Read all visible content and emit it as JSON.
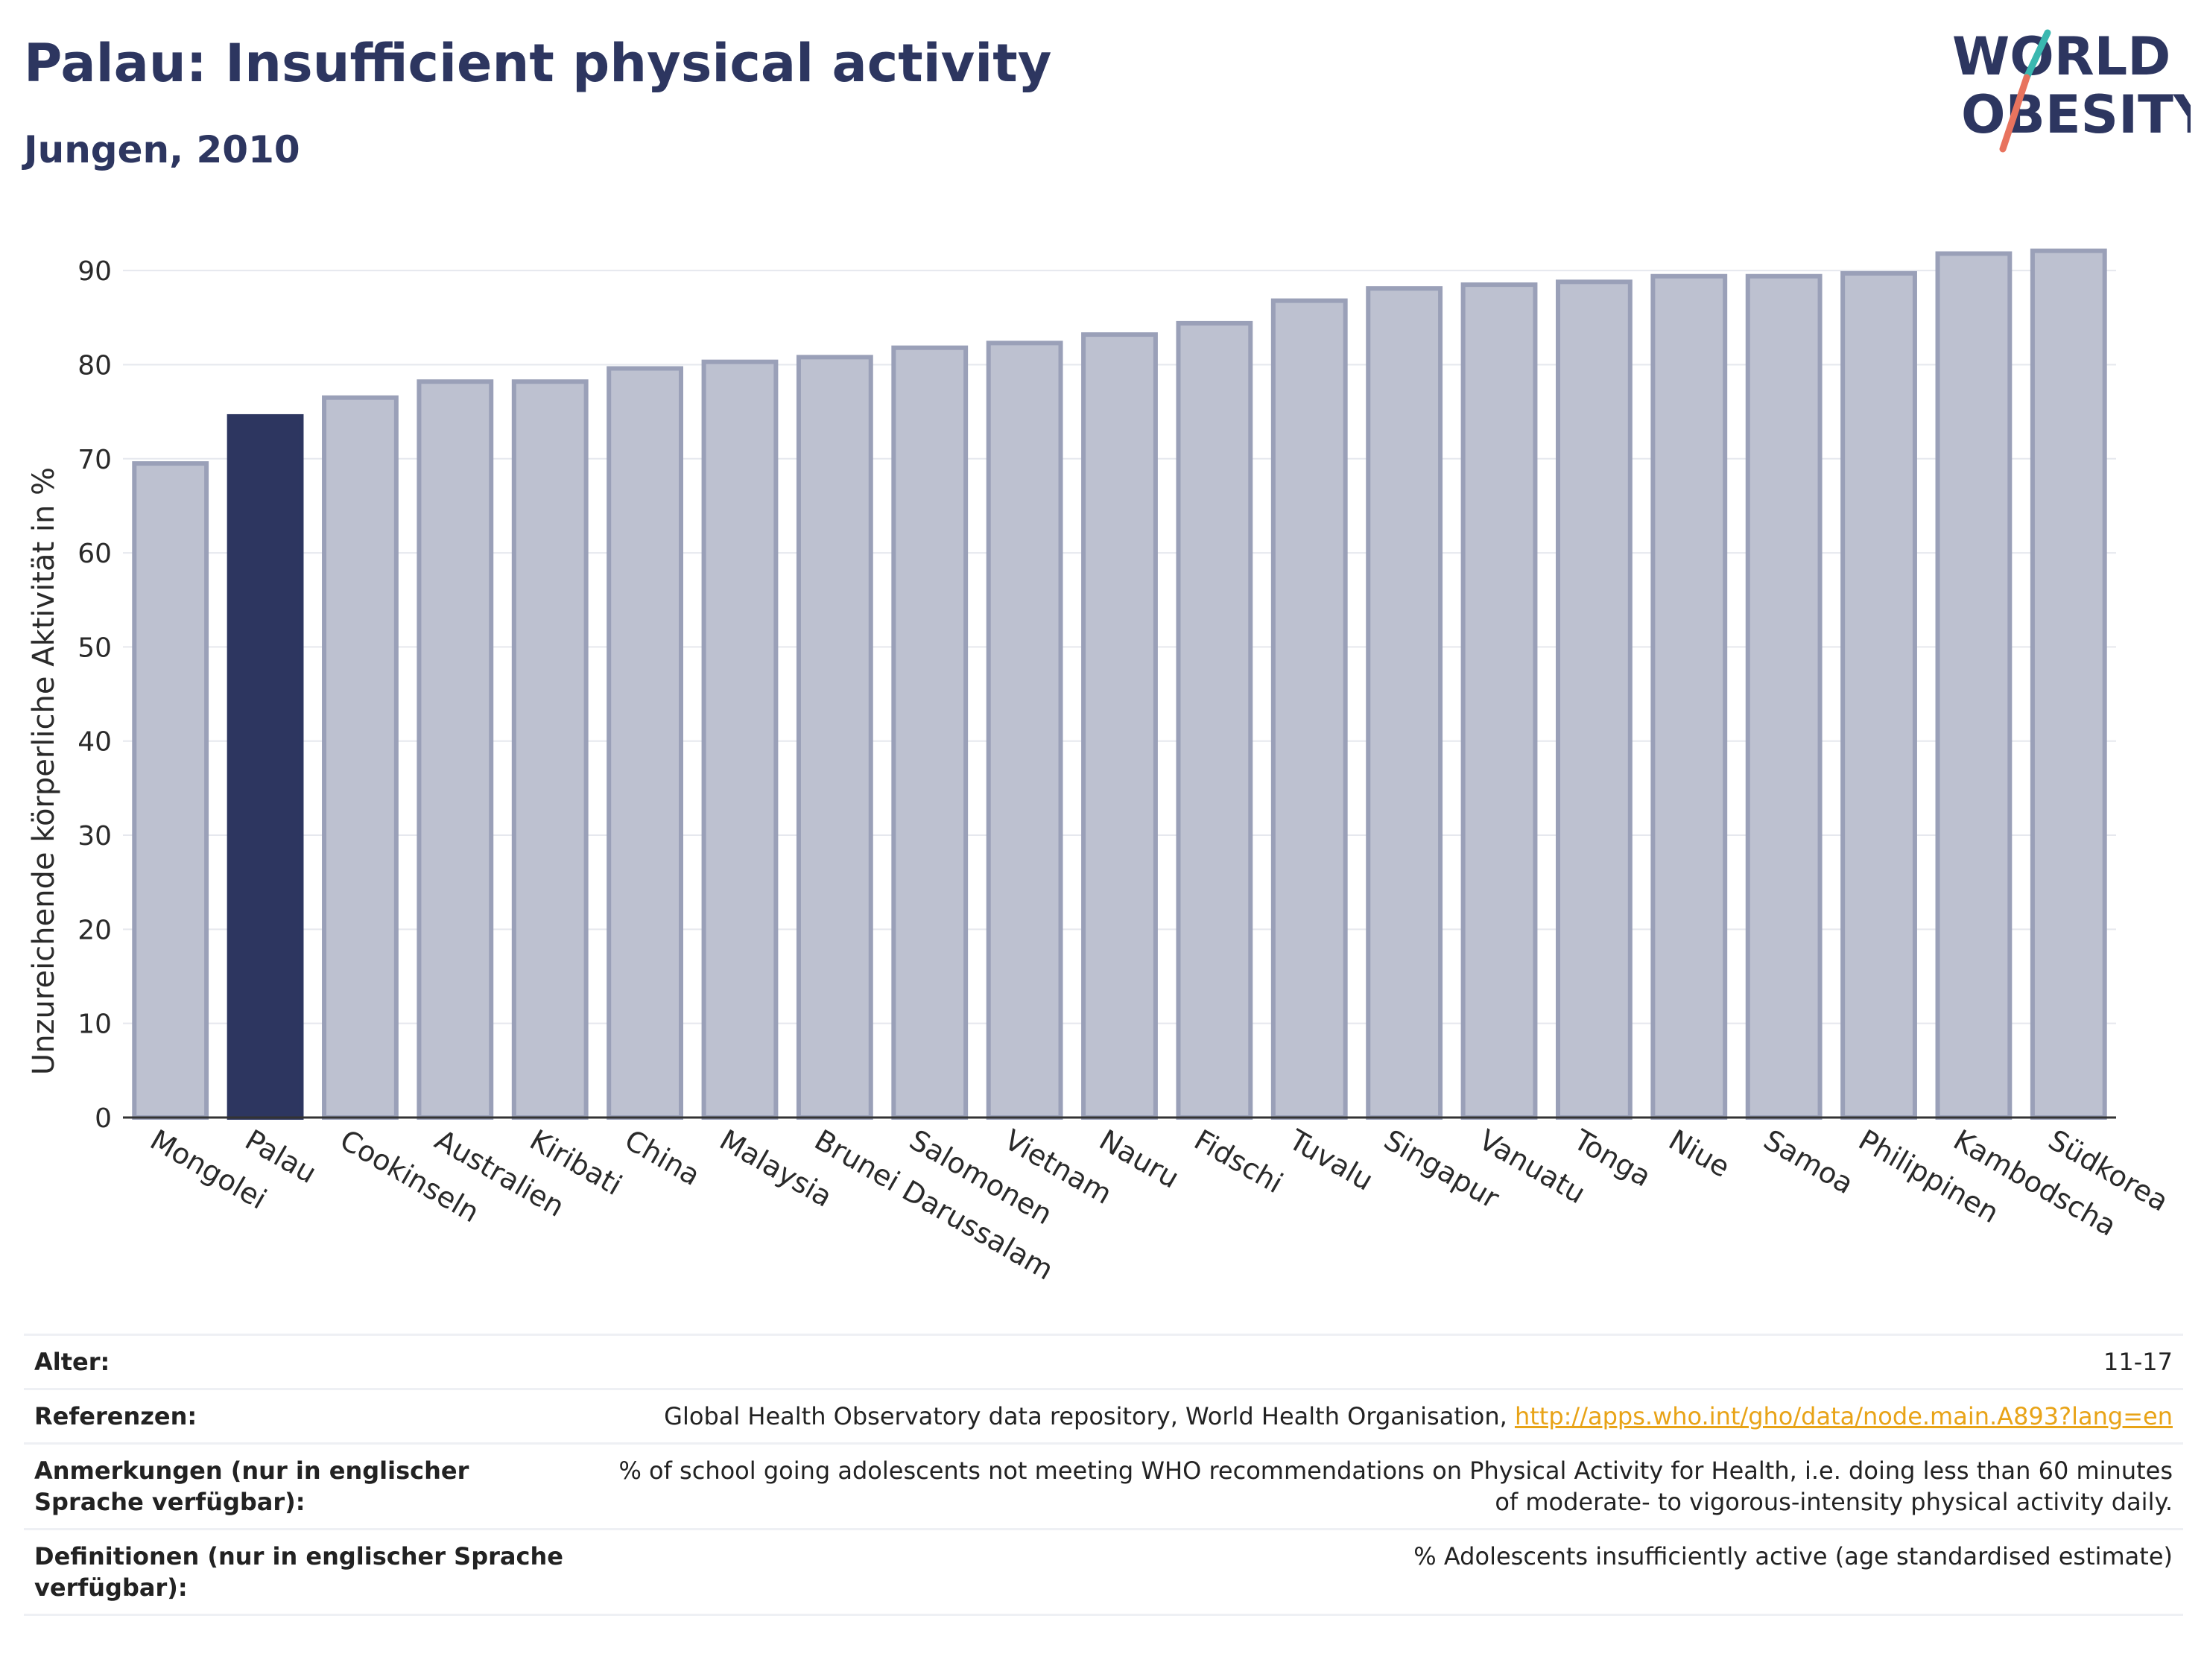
{
  "header": {
    "title": "Palau: Insufficient physical activity",
    "subtitle": "Jungen, 2010"
  },
  "logo": {
    "line1": "WORLD",
    "line2": "OBESITY"
  },
  "colors": {
    "highlight": "#2d3660",
    "bar": "#bdc1d0",
    "bar_border": "#9aa0b8",
    "accent_teal": "#3ab8b0",
    "accent_coral": "#e8735e",
    "link": "#e8a317"
  },
  "chart_data": {
    "type": "bar",
    "ylabel": "Unzureichende körperliche Aktivität in %",
    "ylim": [
      0,
      95
    ],
    "yticks": [
      0,
      10,
      20,
      30,
      40,
      50,
      60,
      70,
      80,
      90
    ],
    "grid": true,
    "highlight_category": "Palau",
    "categories": [
      "Mongolei",
      "Palau",
      "Cookinseln",
      "Australien",
      "Kiribati",
      "China",
      "Malaysia",
      "Brunei Darussalam",
      "Salomonen",
      "Vietnam",
      "Nauru",
      "Fidschi",
      "Tuvalu",
      "Singapur",
      "Vanuatu",
      "Tonga",
      "Niue",
      "Samoa",
      "Philippinen",
      "Kambodscha",
      "Südkorea"
    ],
    "values": [
      69.5,
      74.5,
      76.5,
      78.2,
      78.2,
      79.6,
      80.3,
      80.8,
      81.8,
      82.3,
      83.2,
      84.4,
      86.8,
      88.1,
      88.5,
      88.8,
      89.4,
      89.4,
      89.7,
      91.8,
      92.1
    ]
  },
  "info": {
    "rows": [
      {
        "label": "Alter:",
        "value": "11-17"
      },
      {
        "label": "Referenzen:",
        "value": "Global Health Observatory data repository, World Health Organisation, ",
        "link": "http://apps.who.int/gho/data/node.main.A893?lang=en"
      },
      {
        "label": "Anmerkungen (nur in englischer Sprache verfügbar):",
        "value": "% of school going adolescents not meeting WHO recommendations on Physical Activity for Health, i.e. doing less than 60 minutes of moderate- to vigorous-intensity physical activity daily."
      },
      {
        "label": "Definitionen (nur in englischer Sprache verfügbar):",
        "value": "% Adolescents insufficiently active (age standardised estimate)"
      }
    ]
  }
}
